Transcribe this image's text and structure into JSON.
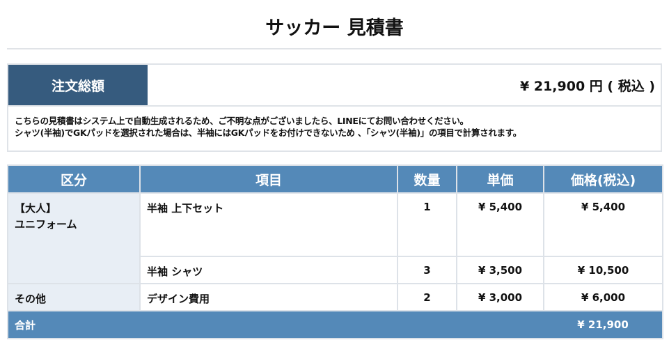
{
  "title": "サッカー 見積書",
  "summary": {
    "label": "注文総額",
    "value": "¥ 21,900 円 ( 税込 )",
    "notes": [
      "こちらの見積書はシステム上で自動生成されるため、ご不明な点がございましたら、LINEにてお問い合わせください。",
      "シャツ(半袖)でGKパッドを選択された場合は、半袖にはGKパッドをお付けできないため 、「シャツ(半袖)」の項目で計算されます。"
    ]
  },
  "table": {
    "headers": [
      "区分",
      "項目",
      "数量",
      "単価",
      "価格(税込)"
    ],
    "groups": [
      {
        "category": [
          "【大人】",
          "ユニフォーム"
        ],
        "rows": [
          {
            "item": "半袖 上下セット",
            "qty": "1",
            "unit": "¥ 5,400",
            "price": "¥ 5,400"
          },
          {
            "item": "半袖 シャツ",
            "qty": "3",
            "unit": "¥ 3,500",
            "price": "¥ 10,500"
          }
        ]
      },
      {
        "category": [
          "その他"
        ],
        "rows": [
          {
            "item": "デザイン費用",
            "qty": "2",
            "unit": "¥ 3,000",
            "price": "¥ 6,000"
          }
        ]
      }
    ],
    "total": {
      "label": "合計",
      "value": "¥ 21,900"
    }
  },
  "colors": {
    "summary_label": "#365b7e",
    "header": "#5489b8",
    "category_bg": "#e8eef5",
    "group_separator": "#2e6aa1"
  }
}
